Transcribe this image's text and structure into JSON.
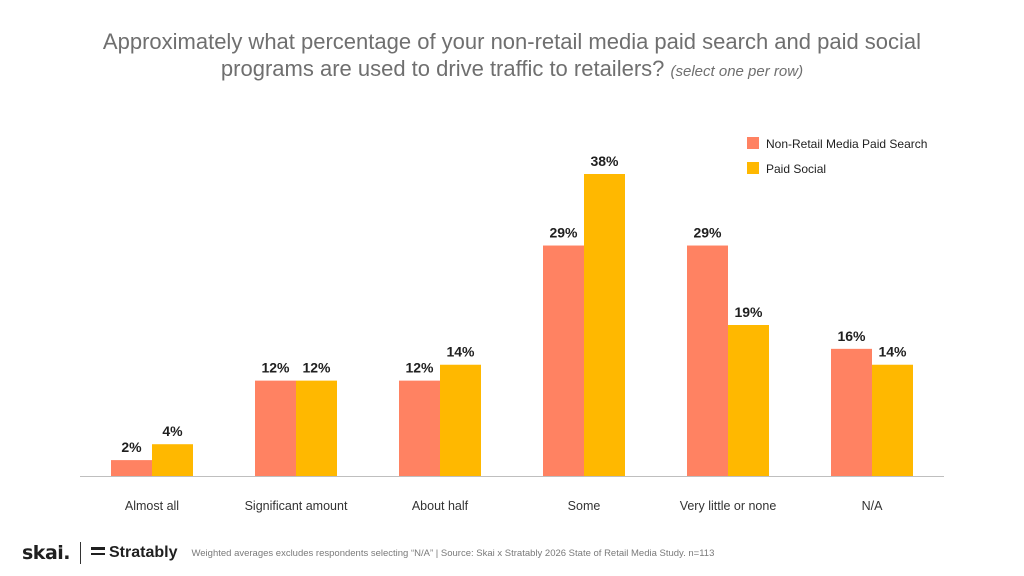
{
  "title": {
    "main": "Approximately what percentage of your non-retail media paid search and paid social programs are used to drive traffic to retailers?",
    "note": "(select one per row)"
  },
  "chart_data": {
    "type": "bar",
    "categories": [
      "Almost all",
      "Significant amount",
      "About half",
      "Some",
      "Very little or none",
      "N/A"
    ],
    "series": [
      {
        "name": "Non-Retail Media Paid Search",
        "color": "#FF8262",
        "values": [
          2,
          12,
          12,
          29,
          29,
          16
        ]
      },
      {
        "name": "Paid Social",
        "color": "#FFB800",
        "values": [
          4,
          12,
          14,
          38,
          19,
          14
        ]
      }
    ],
    "value_suffix": "%",
    "ylim": [
      0,
      40
    ],
    "grid": false,
    "legend": "top-right"
  },
  "footer": {
    "skai_logo": "skai.",
    "stratably_logo": "Stratably",
    "source": "Weighted averages excludes respondents selecting “N/A” | Source: Skai x Stratably 2026 State of Retail Media Study. n=113"
  }
}
